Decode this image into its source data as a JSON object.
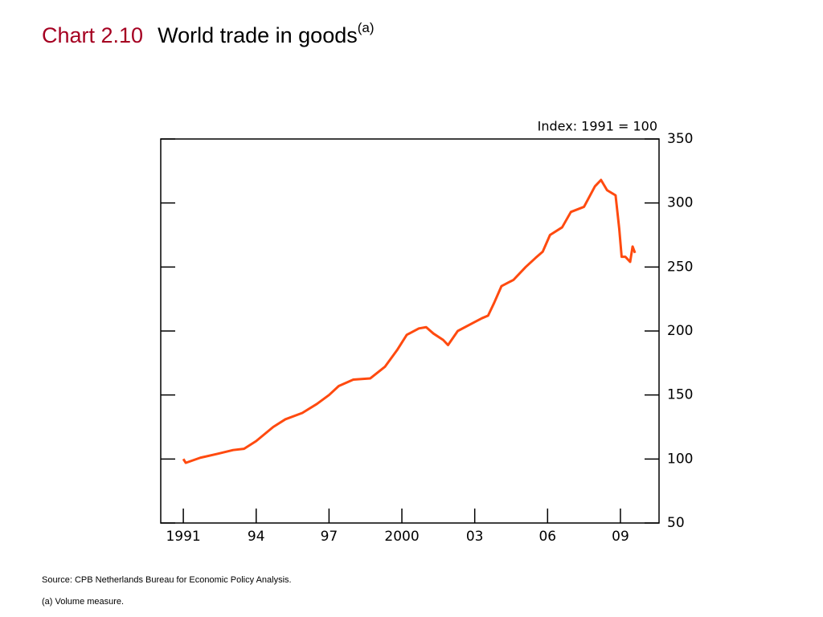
{
  "chart_data": {
    "type": "line",
    "chart_number": "Chart 2.10",
    "title": "World trade in goods",
    "title_note": "(a)",
    "annotation": "Index:  1991 = 100",
    "source": "Source:  CPB Netherlands Bureau for Economic Policy Analysis.",
    "footnote": "(a)  Volume measure.",
    "x": [
      1991.0,
      1991.1,
      1991.7,
      1992.4,
      1993.05,
      1993.5,
      1994.0,
      1994.7,
      1995.2,
      1995.9,
      1996.5,
      1997.0,
      1997.4,
      1998.0,
      1998.7,
      1999.3,
      1999.8,
      2000.2,
      2000.7,
      2001.0,
      2001.3,
      2001.7,
      2001.9,
      2002.3,
      2003.0,
      2003.3,
      2003.55,
      2003.8,
      2004.1,
      2004.6,
      2005.1,
      2005.5,
      2005.8,
      2006.1,
      2006.6,
      2006.96,
      2007.5,
      2007.95,
      2008.2,
      2008.45,
      2008.8,
      2008.95,
      2009.05,
      2009.2,
      2009.4,
      2009.5,
      2009.6
    ],
    "series": [
      {
        "name": "World trade in goods",
        "color": "#ff4a0f",
        "values": [
          100,
          97,
          101,
          104,
          107,
          108,
          114,
          125,
          131,
          136,
          143,
          150,
          157,
          162,
          163,
          172,
          185,
          197,
          202,
          203,
          198,
          193,
          189,
          200,
          207,
          210,
          212,
          222,
          235,
          240,
          250,
          257,
          262,
          275,
          281,
          293,
          297,
          313,
          318,
          310,
          306,
          280,
          258,
          258,
          254,
          266,
          261
        ]
      }
    ],
    "xlim": [
      1990.07,
      2010.59
    ],
    "xticks": [
      1991,
      {
        "value": 1994,
        "label": "94"
      },
      {
        "value": 1997,
        "label": "97"
      },
      2000,
      {
        "value": 2003,
        "label": "03"
      },
      {
        "value": 2006,
        "label": "06"
      },
      {
        "value": 2009,
        "label": "09"
      }
    ],
    "ylim": [
      50,
      350
    ],
    "yticks": [
      50,
      100,
      150,
      200,
      250,
      300,
      350
    ]
  }
}
